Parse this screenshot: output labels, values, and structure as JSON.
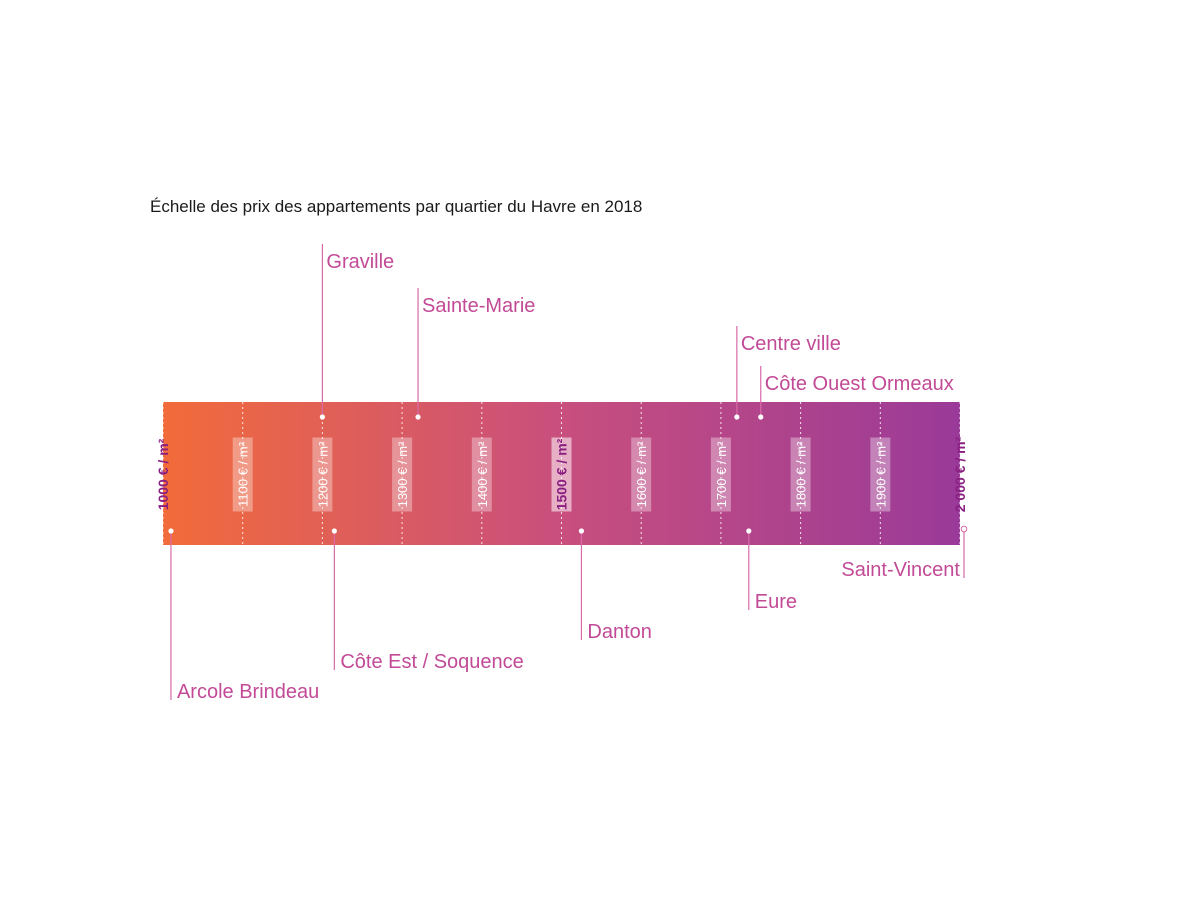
{
  "title": "Échelle des prix des appartements par quartier du Havre en 2018",
  "colors": {
    "gradient_start": "#f26b3a",
    "gradient_mid": "#c84f7e",
    "gradient_end": "#9a3a98",
    "label": "#c24a96",
    "leader": "#d86aa8",
    "bold_tick": "#8a1f82"
  },
  "chart_data": {
    "type": "scatter",
    "title": "Échelle des prix des appartements par quartier du Havre en 2018",
    "x_unit": "€ / m²",
    "xlim": [
      1000,
      2000
    ],
    "ticks": [
      {
        "value": 1000,
        "label": "1000 € / m²",
        "bold": true
      },
      {
        "value": 1100,
        "label": "1100 € / m²",
        "bold": false
      },
      {
        "value": 1200,
        "label": "1200 € / m²",
        "bold": false
      },
      {
        "value": 1300,
        "label": "1300 € / m²",
        "bold": false
      },
      {
        "value": 1400,
        "label": "1400 € / m²",
        "bold": false
      },
      {
        "value": 1500,
        "label": "1500 € / m²",
        "bold": true
      },
      {
        "value": 1600,
        "label": "1600 € / m²",
        "bold": false
      },
      {
        "value": 1700,
        "label": "1700 € / m²",
        "bold": false
      },
      {
        "value": 1800,
        "label": "1800 € / m²",
        "bold": false
      },
      {
        "value": 1900,
        "label": "1900 € / m²",
        "bold": false
      },
      {
        "value": 2000,
        "label": "2 000 € / m²",
        "bold": true
      }
    ],
    "districts": [
      {
        "name": "Graville",
        "price": 1200,
        "side": "above"
      },
      {
        "name": "Sainte-Marie",
        "price": 1320,
        "side": "above"
      },
      {
        "name": "Centre ville",
        "price": 1720,
        "side": "above"
      },
      {
        "name": "Côte Ouest Ormeaux",
        "price": 1750,
        "side": "above"
      },
      {
        "name": "Arcole Brindeau",
        "price": 1010,
        "side": "below"
      },
      {
        "name": "Côte Est / Soquence",
        "price": 1215,
        "side": "below"
      },
      {
        "name": "Danton",
        "price": 1525,
        "side": "below"
      },
      {
        "name": "Eure",
        "price": 1735,
        "side": "below"
      },
      {
        "name": "Saint-Vincent",
        "price": 2005,
        "side": "below",
        "label_align": "end",
        "hollow_marker": true
      }
    ]
  }
}
